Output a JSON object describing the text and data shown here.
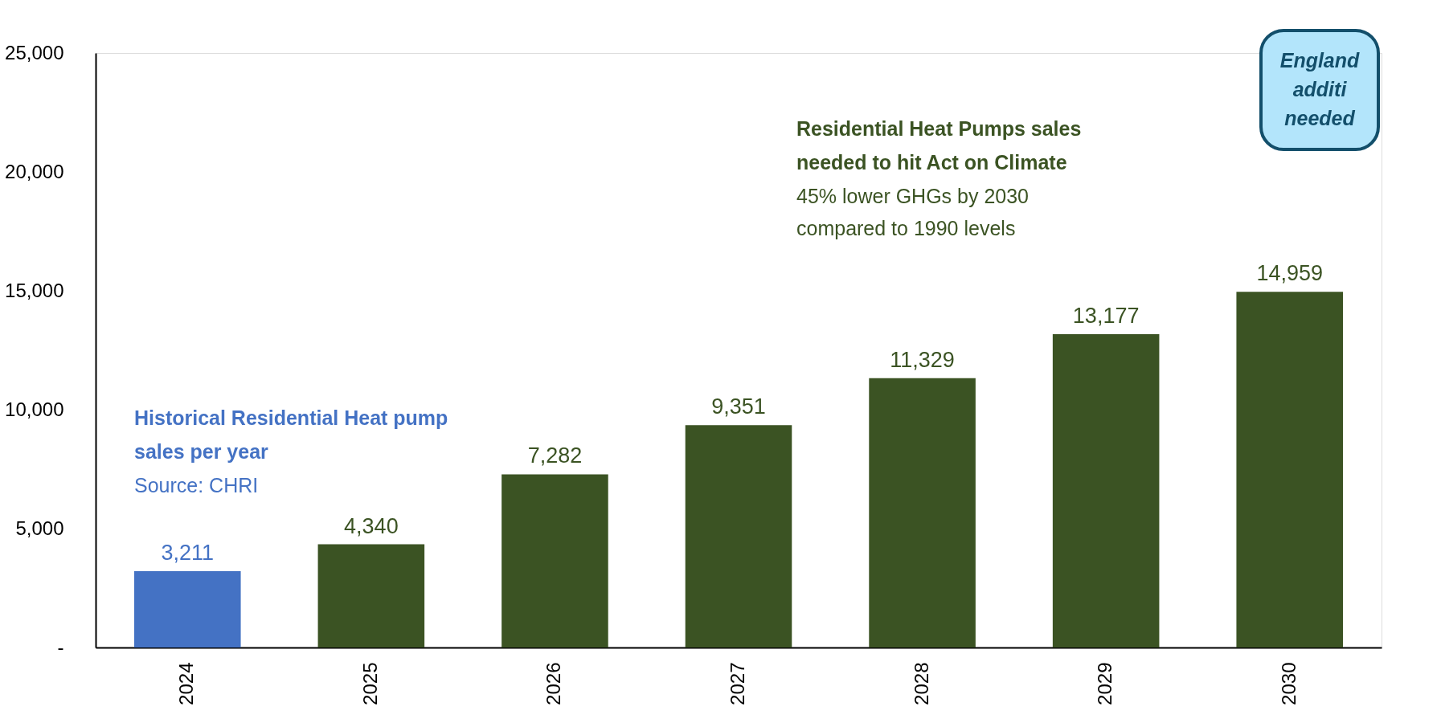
{
  "chart_data": {
    "type": "bar",
    "categories": [
      "2024",
      "2025",
      "2026",
      "2027",
      "2028",
      "2029",
      "2030"
    ],
    "series": [
      {
        "name": "Historical Residential Heat pump sales per year",
        "color": "#4472c4",
        "values": [
          3211,
          null,
          null,
          null,
          null,
          null,
          null
        ],
        "value_labels": [
          "3,211",
          null,
          null,
          null,
          null,
          null,
          null
        ]
      },
      {
        "name": "Residential Heat Pumps sales needed to hit Act on Climate",
        "color": "#3b5323",
        "values": [
          null,
          4340,
          7282,
          9351,
          11329,
          13177,
          14959
        ],
        "value_labels": [
          null,
          "4,340",
          "7,282",
          "9,351",
          "11,329",
          "13,177",
          "14,959"
        ]
      }
    ],
    "ylim": [
      0,
      25000
    ],
    "yticks": [
      {
        "value": 0,
        "label": "-"
      },
      {
        "value": 5000,
        "label": "5,000"
      },
      {
        "value": 10000,
        "label": "10,000"
      },
      {
        "value": 15000,
        "label": "15,000"
      },
      {
        "value": 20000,
        "label": "20,000"
      },
      {
        "value": 25000,
        "label": "25,000"
      }
    ],
    "grid": false,
    "legend": false,
    "annotations": [
      "Source: CHRI",
      "45% lower GHGs by 2030 compared to 1990 levels",
      "England additi needed"
    ]
  }
}
